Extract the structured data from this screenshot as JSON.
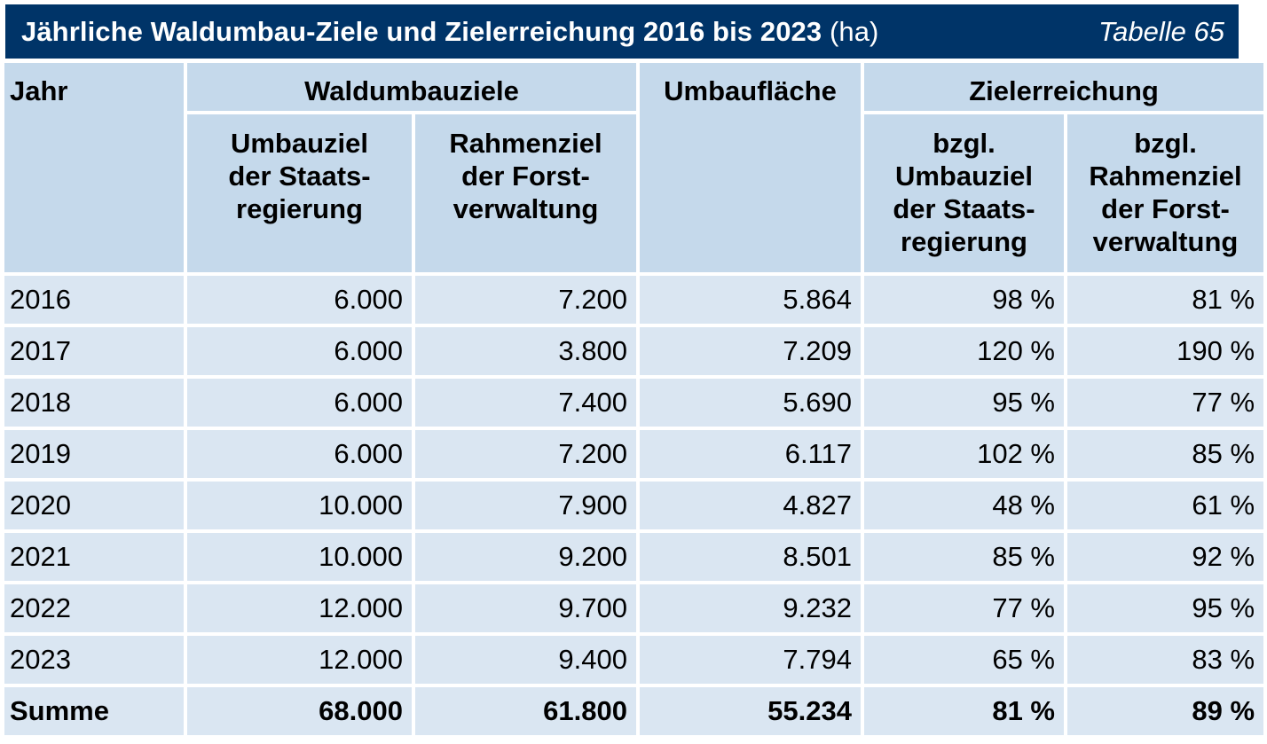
{
  "title": {
    "main": "Jährliche Waldumbau-Ziele und Zielerreichung 2016 bis 2023",
    "unit": "(ha)",
    "table_number": "Tabelle 65"
  },
  "headers": {
    "jahr": "Jahr",
    "waldumbauziele": "Waldumbauziele",
    "umbauflaeche": "Umbaufläche",
    "zielerreichung": "Zielerreichung",
    "umbauziel": [
      "Umbauziel",
      "der Staats-",
      "regierung"
    ],
    "rahmenziel": [
      "Rahmenziel",
      "der Forst-",
      "verwaltung"
    ],
    "bzgl_umbauziel": [
      "bzgl.",
      "Umbauziel",
      "der Staats-",
      "regierung"
    ],
    "bzgl_rahmenziel": [
      "bzgl.",
      "Rahmenziel",
      "der Forst-",
      "verwaltung"
    ]
  },
  "rows": [
    {
      "jahr": "2016",
      "umbauziel": "6.000",
      "rahmenziel": "7.200",
      "umbauflaeche": "5.864",
      "erreichung_umbau": "98 %",
      "erreichung_rahmen": "81 %"
    },
    {
      "jahr": "2017",
      "umbauziel": "6.000",
      "rahmenziel": "3.800",
      "umbauflaeche": "7.209",
      "erreichung_umbau": "120 %",
      "erreichung_rahmen": "190 %"
    },
    {
      "jahr": "2018",
      "umbauziel": "6.000",
      "rahmenziel": "7.400",
      "umbauflaeche": "5.690",
      "erreichung_umbau": "95 %",
      "erreichung_rahmen": "77 %"
    },
    {
      "jahr": "2019",
      "umbauziel": "6.000",
      "rahmenziel": "7.200",
      "umbauflaeche": "6.117",
      "erreichung_umbau": "102 %",
      "erreichung_rahmen": "85 %"
    },
    {
      "jahr": "2020",
      "umbauziel": "10.000",
      "rahmenziel": "7.900",
      "umbauflaeche": "4.827",
      "erreichung_umbau": "48 %",
      "erreichung_rahmen": "61 %"
    },
    {
      "jahr": "2021",
      "umbauziel": "10.000",
      "rahmenziel": "9.200",
      "umbauflaeche": "8.501",
      "erreichung_umbau": "85 %",
      "erreichung_rahmen": "92 %"
    },
    {
      "jahr": "2022",
      "umbauziel": "12.000",
      "rahmenziel": "9.700",
      "umbauflaeche": "9.232",
      "erreichung_umbau": "77 %",
      "erreichung_rahmen": "95 %"
    },
    {
      "jahr": "2023",
      "umbauziel": "12.000",
      "rahmenziel": "9.400",
      "umbauflaeche": "7.794",
      "erreichung_umbau": "65 %",
      "erreichung_rahmen": "83 %"
    }
  ],
  "summe": {
    "label": "Summe",
    "umbauziel": "68.000",
    "rahmenziel": "61.800",
    "umbauflaeche": "55.234",
    "erreichung_umbau": "81 %",
    "erreichung_rahmen": "89 %"
  },
  "colors": {
    "title_bg": "#003468",
    "header_bg": "#c5d9eb",
    "cell_bg": "#dae6f2"
  }
}
